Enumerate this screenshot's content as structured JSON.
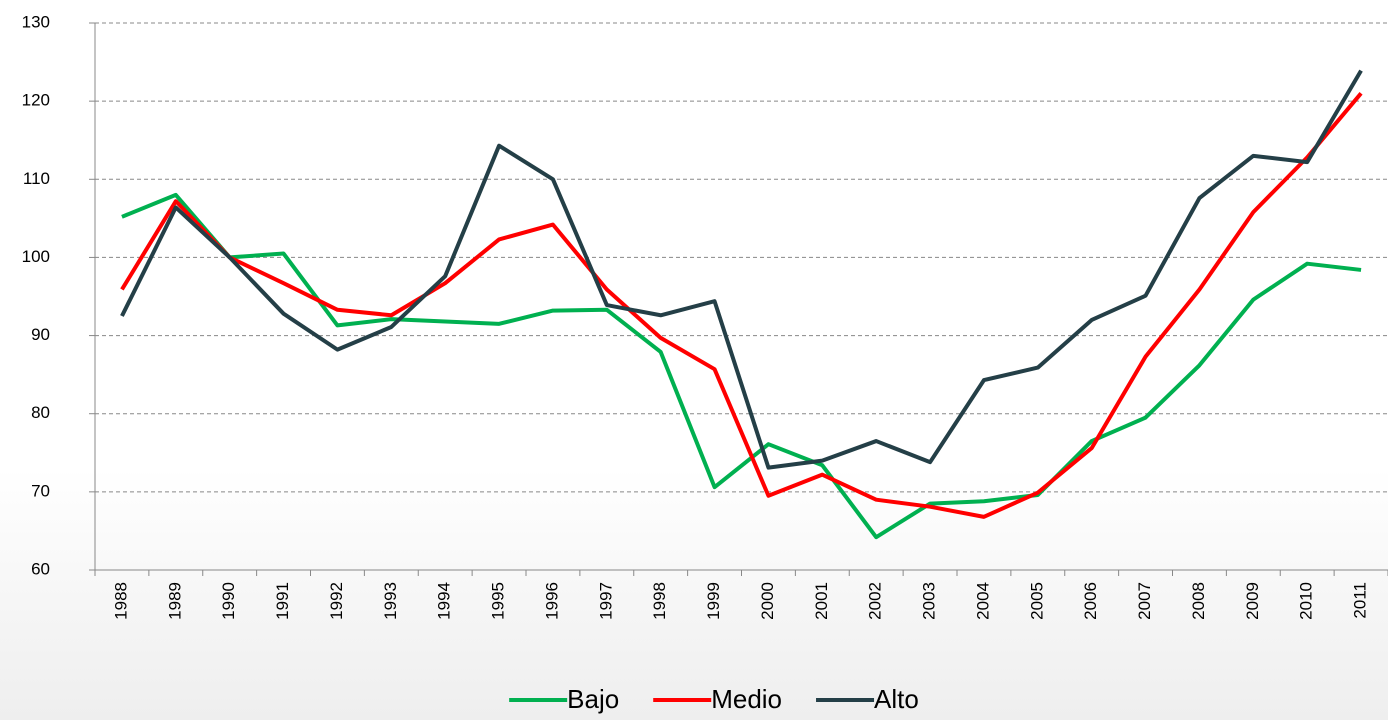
{
  "chart_data": {
    "type": "line",
    "categories": [
      "1988",
      "1989",
      "1990",
      "1991",
      "1992",
      "1993",
      "1994",
      "1995",
      "1996",
      "1997",
      "1998",
      "1999",
      "2000",
      "2001",
      "2002",
      "2003",
      "2004",
      "2005",
      "2006",
      "2007",
      "2008",
      "2009",
      "2010",
      "2011"
    ],
    "series": [
      {
        "name": "Bajo",
        "color": "#00b050",
        "values": [
          105.2,
          108,
          100,
          100.5,
          91.3,
          92.1,
          91.8,
          91.5,
          93.2,
          93.3,
          87.9,
          70.6,
          76.1,
          73.4,
          64.2,
          68.5,
          68.8,
          69.6,
          76.5,
          79.5,
          86.2,
          94.6,
          99.2,
          98.4
        ]
      },
      {
        "name": "Medio",
        "color": "#ff0000",
        "values": [
          95.9,
          107.2,
          100,
          96.7,
          93.3,
          92.6,
          96.7,
          102.3,
          104.2,
          95.9,
          89.7,
          85.7,
          69.5,
          72.2,
          69,
          68.1,
          66.8,
          69.9,
          75.6,
          87.3,
          95.9,
          105.8,
          112.8,
          121
        ]
      },
      {
        "name": "Alto",
        "color": "#243f47",
        "values": [
          92.5,
          106.4,
          100,
          92.8,
          88.2,
          91.1,
          97.6,
          114.3,
          110,
          93.9,
          92.6,
          94.4,
          73.1,
          74,
          76.5,
          73.8,
          84.3,
          85.9,
          92,
          95.1,
          107.6,
          113,
          112.2,
          123.9
        ]
      }
    ],
    "ylim": [
      60,
      130
    ],
    "yticks": [
      60,
      70,
      80,
      90,
      100,
      110,
      120,
      130
    ],
    "grid": true,
    "legend": "bottom"
  }
}
